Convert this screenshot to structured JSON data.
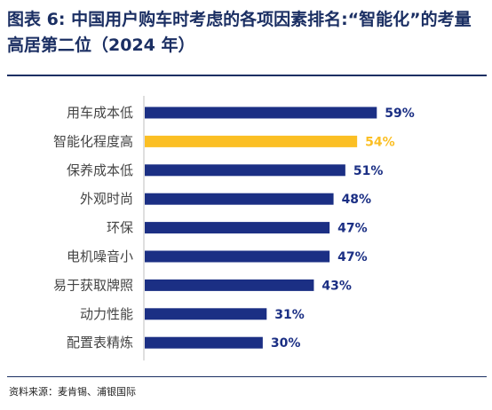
{
  "title": {
    "prefix": "图表 6:",
    "text": "中国用户购车时考虑的各项因素排名:“智能化”的考量高居第二位（2024 年）"
  },
  "source": "资料来源：麦肯锡、浦银国际",
  "colors": {
    "bar": "#1b2f84",
    "highlight": "#fbbf24",
    "axis": "#bfbfbf"
  },
  "chart_data": {
    "type": "bar",
    "orientation": "horizontal",
    "categories": [
      "用车成本低",
      "智能化程度高",
      "保养成本低",
      "外观时尚",
      "环保",
      "电机噪音小",
      "易于获取牌照",
      "动力性能",
      "配置表精炼"
    ],
    "values": [
      59,
      54,
      51,
      48,
      47,
      47,
      43,
      31,
      30
    ],
    "value_labels": [
      "59%",
      "54%",
      "51%",
      "48%",
      "47%",
      "47%",
      "43%",
      "31%",
      "30%"
    ],
    "highlight_index": 1,
    "xlim": [
      0,
      70
    ],
    "grid": false,
    "legend": "none"
  }
}
